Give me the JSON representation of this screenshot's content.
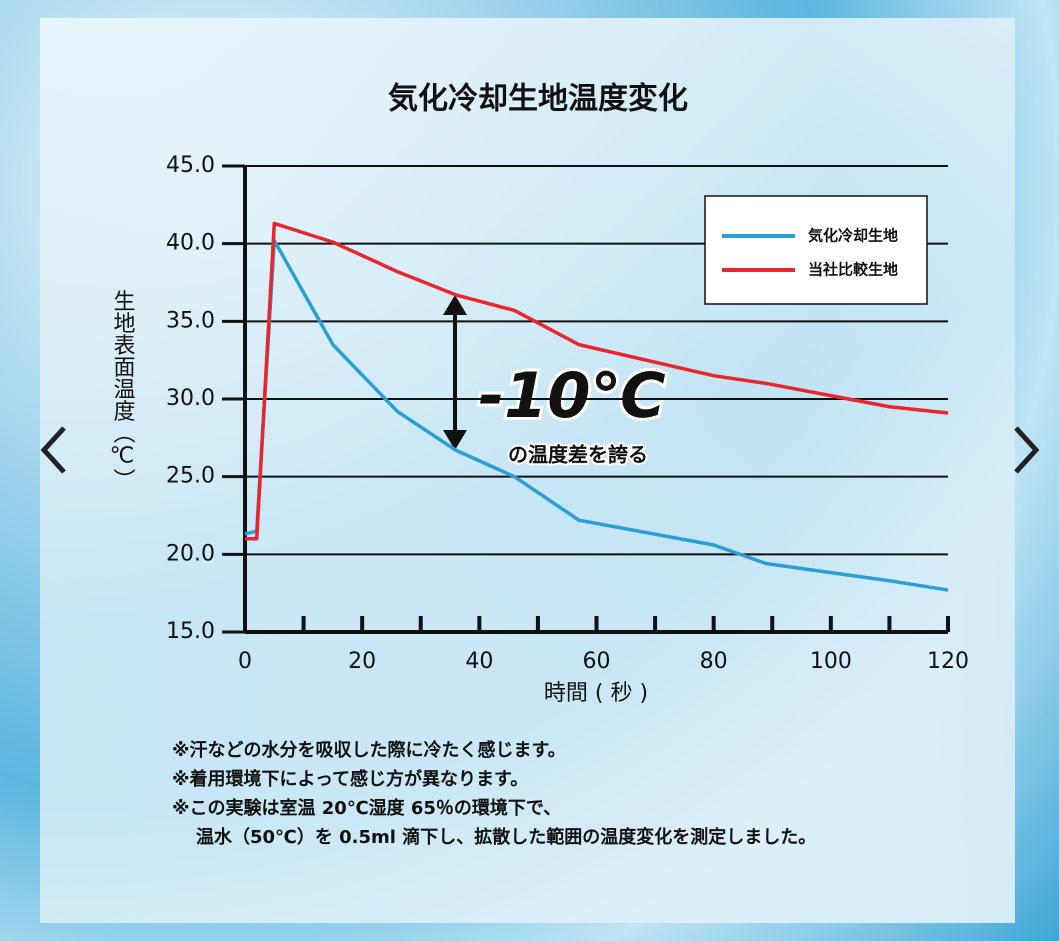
{
  "chart_data": {
    "type": "line",
    "title": "気化冷却生地温度変化",
    "x_label": "時間 ( 秒 )",
    "y_label": "生地表面温度（℃）",
    "x": [
      0,
      2,
      5,
      15,
      26,
      36,
      46,
      57,
      80,
      89,
      110,
      120
    ],
    "series": [
      {
        "name": "気化冷却生地",
        "color": "#2a9fd6",
        "values": [
          21.3,
          21.5,
          40.2,
          33.5,
          29.2,
          26.7,
          25,
          22.2,
          20.6,
          19.4,
          18.3,
          17.7
        ]
      },
      {
        "name": "当社比較生地",
        "color": "#e8262b",
        "values": [
          21,
          21,
          41.3,
          40.1,
          38.2,
          36.7,
          35.7,
          33.5,
          31.5,
          31,
          29.5,
          29.1
        ]
      }
    ],
    "xlim": [
      0,
      120
    ],
    "xticks": [
      0,
      20,
      40,
      60,
      80,
      100,
      120
    ],
    "xminorticks": [
      10,
      30,
      50,
      70,
      90,
      110
    ],
    "ylim": [
      15,
      45
    ],
    "yticks": [
      {
        "value": 15,
        "label": "15.0"
      },
      {
        "value": 20,
        "label": "20.0"
      },
      {
        "value": 25,
        "label": "25.0"
      },
      {
        "value": 30,
        "label": "30.0"
      },
      {
        "value": 35,
        "label": "35.0"
      },
      {
        "value": 40,
        "label": "40.0"
      },
      {
        "value": 45,
        "label": "45.0"
      }
    ],
    "grid": true,
    "legend": "upper right",
    "annotation": {
      "main": "-10℃",
      "sub": "の温度差を誇る"
    },
    "notes": [
      "※汗などの水分を吸収した際に冷たく感じます。",
      "※着用環境下によって感じ方が異なります。",
      "※この実験は室温 20℃湿度 65％の環境下で、",
      "温水（50℃）を 0.5ml 滴下し、拡散した範囲の温度変化を測定しました。"
    ]
  }
}
